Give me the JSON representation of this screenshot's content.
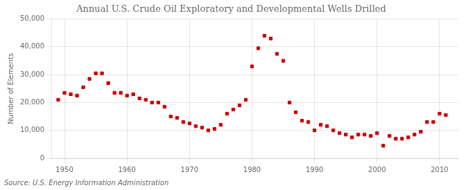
{
  "chart_data": {
    "type": "scatter",
    "title": "Annual U.S. Crude Oil Exploratory and Developmental Wells Drilled",
    "ylabel": "Number of Elements",
    "annotation": "Source: U.S. Energy Information Administration",
    "color": "#cc0000",
    "marker": "square",
    "grid": true,
    "x": [
      1949,
      1950,
      1951,
      1952,
      1953,
      1954,
      1955,
      1956,
      1957,
      1958,
      1959,
      1960,
      1961,
      1962,
      1963,
      1964,
      1965,
      1966,
      1967,
      1968,
      1969,
      1970,
      1971,
      1972,
      1973,
      1974,
      1975,
      1976,
      1977,
      1978,
      1979,
      1980,
      1981,
      1982,
      1983,
      1984,
      1985,
      1986,
      1987,
      1988,
      1989,
      1990,
      1991,
      1992,
      1993,
      1994,
      1995,
      1996,
      1997,
      1998,
      1999,
      2000,
      2001,
      2002,
      2003,
      2004,
      2005,
      2006,
      2007,
      2008,
      2009,
      2010,
      2011
    ],
    "values": [
      21000,
      23500,
      23000,
      22500,
      25500,
      28500,
      30500,
      30500,
      27000,
      23500,
      23500,
      22500,
      23000,
      21500,
      21000,
      20000,
      20000,
      18500,
      15000,
      14500,
      13000,
      12500,
      11500,
      11000,
      10000,
      10500,
      12000,
      16000,
      17500,
      19000,
      21000,
      33000,
      39500,
      44000,
      43000,
      37500,
      35000,
      20000,
      16500,
      13500,
      13000,
      10000,
      12000,
      11500,
      10000,
      9000,
      8500,
      7500,
      8500,
      8500,
      8000,
      9000,
      4500,
      8000,
      7000,
      7000,
      7500,
      8500,
      9500,
      13000,
      13000,
      16000,
      15500
    ],
    "xlim": [
      1948,
      2013
    ],
    "xticks": [
      1950,
      1960,
      1970,
      1980,
      1990,
      2000,
      2010
    ],
    "ylim": [
      0,
      50000
    ],
    "yticks": [
      0,
      {
        "value": 10000,
        "label": "10,000"
      },
      {
        "value": 20000,
        "label": "20,000"
      },
      {
        "value": 30000,
        "label": "30,000"
      },
      {
        "value": 40000,
        "label": "40,000"
      },
      {
        "value": 50000,
        "label": "50,000"
      }
    ]
  }
}
